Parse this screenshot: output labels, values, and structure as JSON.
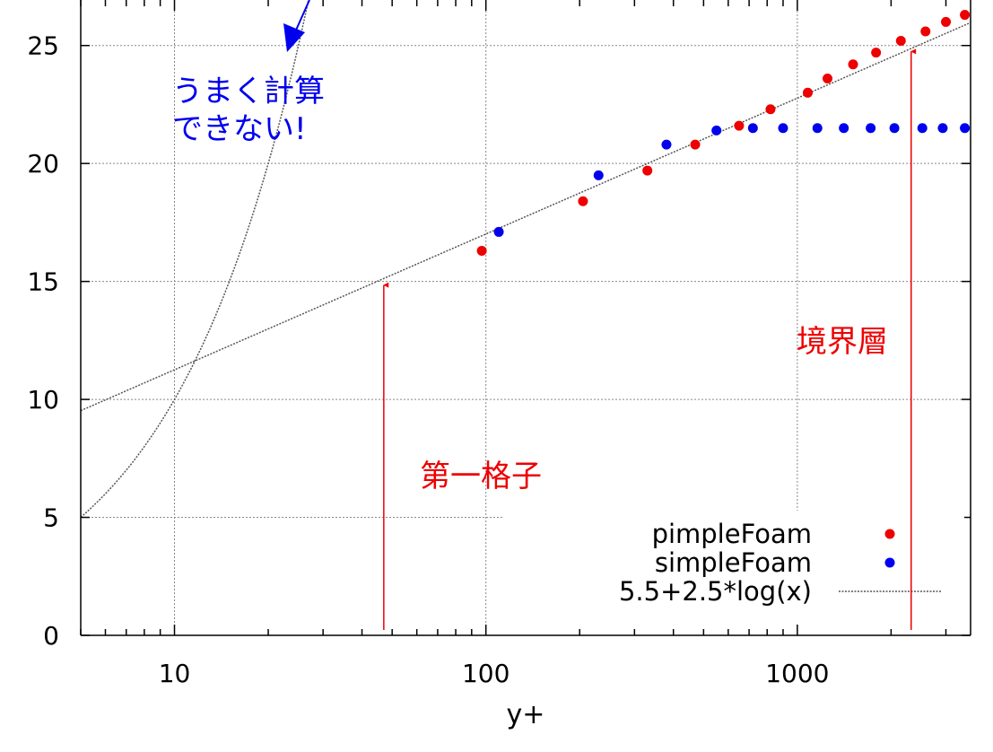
{
  "chart_data": {
    "type": "scatter",
    "title": "",
    "xlabel": "y+",
    "ylabel": "",
    "xscale": "log",
    "xlim": [
      5,
      3600
    ],
    "ylim": [
      0,
      27.5
    ],
    "x_ticks": [
      10,
      100,
      1000
    ],
    "x_tick_labels": [
      "10",
      "100",
      "1000"
    ],
    "y_ticks": [
      0,
      5,
      10,
      15,
      20,
      25
    ],
    "y_tick_labels": [
      "0",
      "5",
      "10",
      "15",
      "20",
      "25"
    ],
    "grid": true,
    "legend_position": "bottom-right",
    "series": [
      {
        "name": "pimpleFoam",
        "kind": "points",
        "color": "#ee0000",
        "x": [
          97,
          205,
          330,
          470,
          650,
          820,
          1080,
          1250,
          1510,
          1790,
          2150,
          2580,
          3000,
          3450
        ],
        "y": [
          16.3,
          18.4,
          19.7,
          20.8,
          21.6,
          22.3,
          23.0,
          23.6,
          24.2,
          24.7,
          25.2,
          25.6,
          26.0,
          26.3
        ]
      },
      {
        "name": "simpleFoam",
        "kind": "points",
        "color": "#0000ee",
        "x": [
          110,
          230,
          380,
          550,
          720,
          900,
          1160,
          1410,
          1720,
          2050,
          2520,
          2930,
          3450
        ],
        "y": [
          17.1,
          19.5,
          20.8,
          21.4,
          21.5,
          21.5,
          21.5,
          21.5,
          21.5,
          21.5,
          21.5,
          21.5,
          21.5
        ]
      },
      {
        "name": "5.5+2.5*log(x)",
        "kind": "line",
        "color": "#555555",
        "formula": "5.5+2.5*ln(x)",
        "x_range": [
          5,
          3600
        ]
      },
      {
        "name": "",
        "kind": "line",
        "color": "#555555",
        "formula": "x",
        "x_range": [
          5,
          27.5
        ]
      }
    ],
    "annotations": [
      {
        "id": "umaku",
        "text_lines": [
          "うまく計算",
          "できない!"
        ],
        "color": "#0000ee"
      },
      {
        "id": "daiichi",
        "text": "第一格子",
        "color": "#ee0000",
        "arrow_x": 47,
        "arrow_y": [
          0,
          15.0
        ]
      },
      {
        "id": "kyokai",
        "text": "境界層",
        "color": "#ee0000",
        "arrow_x": 2320,
        "arrow_y": [
          0,
          24.9
        ]
      }
    ]
  }
}
